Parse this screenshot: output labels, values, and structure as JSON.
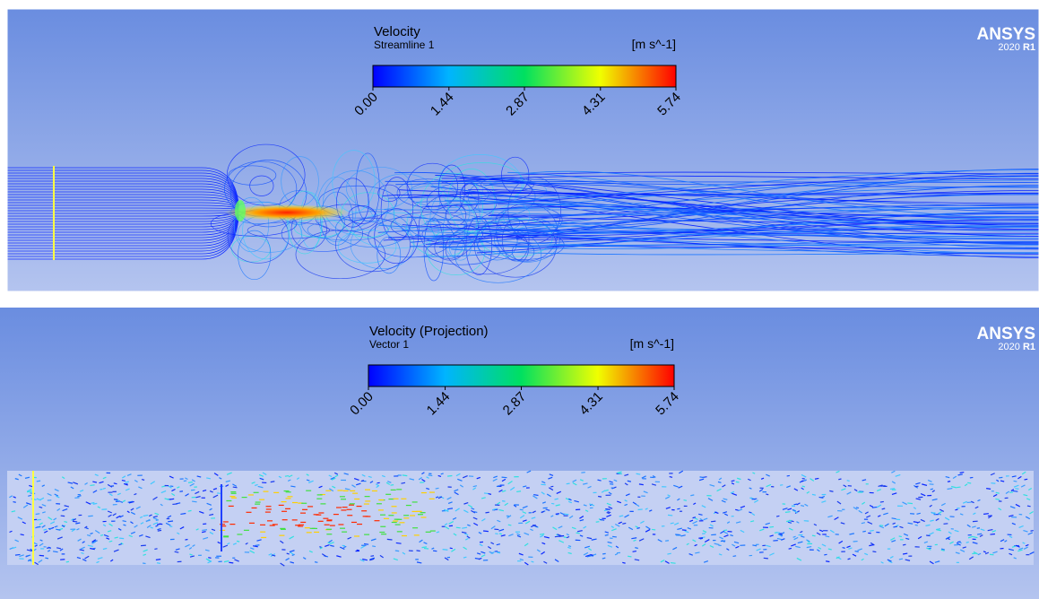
{
  "panels": [
    {
      "title": "Velocity",
      "subtitle": "Streamline 1",
      "unit": "[m s^-1]",
      "ticks": [
        {
          "value": 0,
          "label": "0.00"
        },
        {
          "value": 1.44,
          "label": "1.44"
        },
        {
          "value": 2.87,
          "label": "2.87"
        },
        {
          "value": 4.31,
          "label": "4.31"
        },
        {
          "value": 5.74,
          "label": "5.74"
        }
      ],
      "logo": "ANSYS",
      "version": "2020",
      "release": "R1"
    },
    {
      "title": "Velocity (Projection)",
      "subtitle": "Vector 1",
      "unit": "[m s^-1]",
      "ticks": [
        {
          "value": 0,
          "label": "0.00"
        },
        {
          "value": 1.44,
          "label": "1.44"
        },
        {
          "value": 2.87,
          "label": "2.87"
        },
        {
          "value": 4.31,
          "label": "4.31"
        },
        {
          "value": 5.74,
          "label": "5.74"
        }
      ],
      "logo": "ANSYS",
      "version": "2020",
      "release": "R1"
    }
  ]
}
